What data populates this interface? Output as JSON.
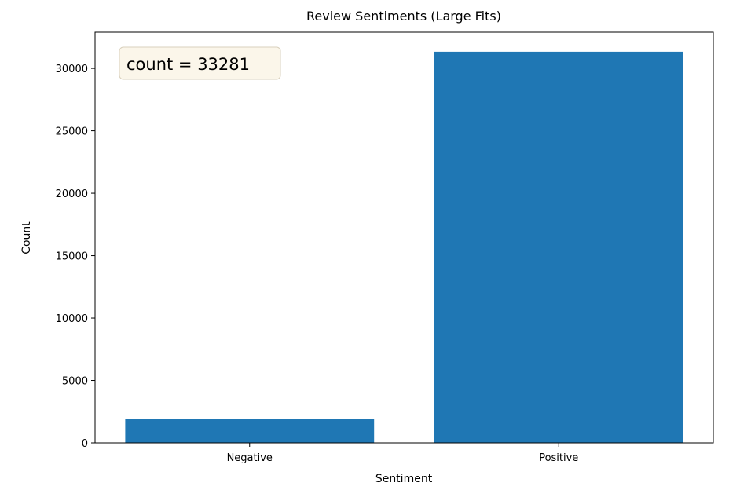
{
  "chart_data": {
    "type": "bar",
    "title": "Review Sentiments (Large Fits)",
    "xlabel": "Sentiment",
    "ylabel": "Count",
    "categories": [
      "Negative",
      "Positive"
    ],
    "values": [
      1950,
      31331
    ],
    "ylim": [
      0,
      32900
    ],
    "yticks": [
      0,
      5000,
      10000,
      15000,
      20000,
      25000,
      30000
    ],
    "ytick_labels": [
      "0",
      "5000",
      "10000",
      "15000",
      "20000",
      "25000",
      "30000"
    ],
    "bar_color": "#1f77b4",
    "grid": false,
    "annotation": {
      "text": "count = 33281",
      "position": "top-left",
      "box_face": "#fbf6ea",
      "box_edge": "#d9d0bd"
    }
  }
}
